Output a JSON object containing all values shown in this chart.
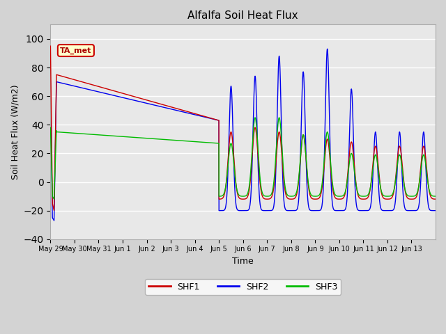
{
  "title": "Alfalfa Soil Heat Flux",
  "xlabel": "Time",
  "ylabel": "Soil Heat Flux (W/m2)",
  "ylim": [
    -40,
    110
  ],
  "yticks": [
    -40,
    -20,
    0,
    20,
    40,
    60,
    80,
    100
  ],
  "fig_bg_color": "#d3d3d3",
  "plot_bg_color": "#e8e8e8",
  "line_colors": {
    "SHF1": "#cc0000",
    "SHF2": "#0000ee",
    "SHF3": "#00bb00"
  },
  "legend_label": "TA_met",
  "legend_box_color": "#ffffcc",
  "legend_box_edge": "#cc0000",
  "xtick_labels": [
    "May 29",
    "May 30",
    "May 31",
    "Jun 1",
    "Jun 2",
    "Jun 3",
    "Jun 4",
    "Jun 5",
    "Jun 6",
    "Jun 7",
    "Jun 8",
    "Jun 9",
    "Jun 10",
    "Jun 11",
    "Jun 12",
    "Jun 13"
  ],
  "n_days": 16,
  "pts_per_day": 240
}
